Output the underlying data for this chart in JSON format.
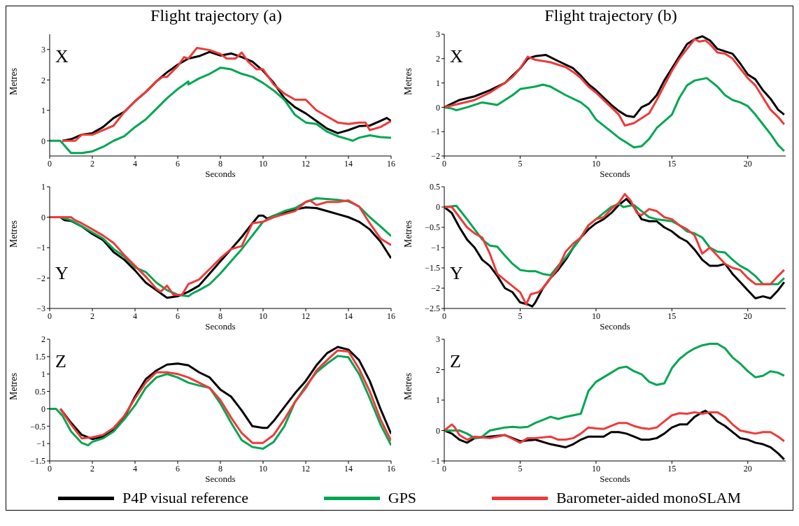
{
  "chart_data": [
    {
      "type": "line",
      "title": "Flight trajectory (a)",
      "xlabel": "Seconds",
      "ylabel": "Metres",
      "annotations": [
        "X"
      ],
      "marker": "none",
      "xlim": [
        0,
        16
      ],
      "xticks": [
        0,
        2,
        4,
        6,
        8,
        10,
        12,
        14,
        16
      ],
      "ylim": [
        -0.5,
        3.5
      ],
      "yticks": [
        0,
        1,
        2,
        3
      ],
      "series": [
        {
          "color": "#000000",
          "x": [
            0.6,
            1,
            1.5,
            2,
            2.5,
            3,
            3.5,
            4,
            4.5,
            5,
            5.5,
            6,
            6.5,
            7,
            7.5,
            8,
            8.5,
            9,
            9.5,
            10,
            10.5,
            11,
            11.5,
            12,
            12.5,
            13,
            13.5,
            14,
            14.5,
            15,
            15.5,
            15.8,
            16
          ],
          "values": [
            0,
            0.05,
            0.2,
            0.25,
            0.45,
            0.75,
            0.95,
            1.3,
            1.6,
            1.95,
            2.25,
            2.5,
            2.7,
            2.78,
            2.92,
            2.8,
            2.87,
            2.75,
            2.6,
            2.3,
            1.9,
            1.4,
            1.1,
            0.9,
            0.65,
            0.4,
            0.25,
            0.35,
            0.48,
            0.5,
            0.65,
            0.75,
            0.65
          ]
        },
        {
          "color": "#00a651",
          "x": [
            0,
            0.5,
            1,
            1.5,
            2,
            2.5,
            3,
            3.5,
            4,
            4.5,
            5,
            5.5,
            6,
            6.5,
            6.5,
            7,
            7.5,
            8,
            8.5,
            9,
            9.5,
            10,
            10.5,
            11,
            11.5,
            12,
            12.5,
            13,
            13.5,
            14,
            14.2,
            14.5,
            15,
            15.5,
            16
          ],
          "values": [
            0,
            0,
            -0.4,
            -0.4,
            -0.35,
            -0.2,
            0,
            0.15,
            0.45,
            0.7,
            1.05,
            1.4,
            1.7,
            1.95,
            1.85,
            2.05,
            2.2,
            2.4,
            2.35,
            2.2,
            2.1,
            1.9,
            1.65,
            1.35,
            0.85,
            0.6,
            0.55,
            0.3,
            0.15,
            0.05,
            0,
            0.1,
            0.18,
            0.12,
            0.1
          ]
        },
        {
          "color": "#ee3a3a",
          "x": [
            0.6,
            1.2,
            1.5,
            2,
            2.5,
            3,
            3.5,
            4,
            4.5,
            5,
            5.3,
            5.5,
            6,
            6.3,
            6.5,
            6.9,
            7.5,
            8,
            8.3,
            8.7,
            9,
            9.3,
            9.7,
            10,
            10.5,
            11,
            11.5,
            12,
            12.5,
            13,
            13.5,
            14,
            14.5,
            14.8,
            15,
            15.5,
            16
          ],
          "values": [
            0,
            0,
            0.2,
            0.2,
            0.35,
            0.5,
            0.95,
            1.3,
            1.6,
            1.95,
            2.1,
            2.1,
            2.45,
            2.75,
            2.7,
            3.05,
            2.98,
            2.85,
            2.7,
            2.7,
            2.9,
            2.6,
            2.35,
            2.35,
            1.85,
            1.55,
            1.35,
            1.35,
            1,
            0.8,
            0.6,
            0.55,
            0.6,
            0.6,
            0.35,
            0.45,
            0.65
          ]
        }
      ]
    },
    {
      "type": "line",
      "title": "Flight trajectory (b)",
      "xlabel": "Seconds",
      "ylabel": "Metres",
      "annotations": [
        "X"
      ],
      "marker": "none",
      "xlim": [
        0,
        22.5
      ],
      "xticks": [
        0,
        5,
        10,
        15,
        20
      ],
      "ylim": [
        -2,
        3
      ],
      "yticks": [
        -2,
        -1,
        0,
        1,
        2,
        3
      ],
      "series": [
        {
          "color": "#000000",
          "x": [
            0,
            1,
            2,
            3,
            4,
            4.5,
            5,
            5.5,
            6,
            6.7,
            7.5,
            8.5,
            9,
            9.5,
            10,
            10.5,
            11,
            11.5,
            12,
            12.5,
            13,
            13.5,
            14,
            14.5,
            15,
            15.5,
            16,
            16.5,
            17,
            17.5,
            18,
            18.5,
            19,
            19.5,
            20,
            20.5,
            21,
            21.5,
            22,
            22.4
          ],
          "values": [
            0,
            0.3,
            0.45,
            0.7,
            1,
            1.3,
            1.6,
            2,
            2.1,
            2.15,
            1.9,
            1.6,
            1.3,
            0.95,
            0.7,
            0.4,
            0.1,
            -0.15,
            -0.35,
            -0.4,
            0,
            0.15,
            0.5,
            1.1,
            1.6,
            2.1,
            2.6,
            2.8,
            2.92,
            2.75,
            2.4,
            2.3,
            2.2,
            1.8,
            1.35,
            1.15,
            0.7,
            0.35,
            -0.1,
            -0.3
          ]
        },
        {
          "color": "#00a651",
          "x": [
            0,
            0.5,
            0.8,
            1.5,
            2.5,
            3,
            3.5,
            4,
            4.5,
            5,
            6,
            6.5,
            7,
            8,
            9,
            9.5,
            10,
            11,
            11.5,
            12,
            12.5,
            13,
            13.5,
            14,
            15,
            15.5,
            16,
            16.5,
            17.3,
            18,
            18.5,
            19,
            19.5,
            20,
            20.5,
            21,
            21.5,
            22,
            22.4
          ],
          "values": [
            0,
            -0.05,
            -0.12,
            0,
            0.2,
            0.15,
            0.1,
            0.3,
            0.5,
            0.75,
            0.85,
            0.93,
            0.85,
            0.5,
            0.2,
            -0.05,
            -0.5,
            -1,
            -1.25,
            -1.45,
            -1.65,
            -1.6,
            -1.3,
            -0.85,
            -0.3,
            0.4,
            0.9,
            1.1,
            1.2,
            0.85,
            0.5,
            0.3,
            0.2,
            0.05,
            -0.3,
            -0.7,
            -1.1,
            -1.55,
            -1.8
          ]
        },
        {
          "color": "#ee3a3a",
          "x": [
            0,
            1,
            2,
            3,
            4,
            4.5,
            5,
            5.5,
            6,
            7,
            8,
            8.5,
            9,
            9.5,
            10,
            10.5,
            11,
            11.5,
            11.9,
            12.5,
            13,
            13.5,
            14,
            14.5,
            15,
            15.5,
            16,
            16.5,
            16.8,
            17.2,
            17.5,
            18,
            18.5,
            19,
            19.5,
            20,
            20.5,
            21,
            21.5,
            22,
            22.4
          ],
          "values": [
            0,
            0.15,
            0.3,
            0.6,
            1,
            1.25,
            1.6,
            2.08,
            1.95,
            1.85,
            1.65,
            1.45,
            1.2,
            0.85,
            0.6,
            0.3,
            0,
            -0.3,
            -0.75,
            -0.65,
            -0.45,
            -0.25,
            0.3,
            0.9,
            1.5,
            2,
            2.4,
            2.8,
            2.7,
            2.75,
            2.6,
            2.25,
            2.2,
            2,
            1.6,
            1.2,
            0.9,
            0.4,
            -0.1,
            -0.4,
            -0.7
          ]
        }
      ]
    },
    {
      "type": "line",
      "xlabel": "Seconds",
      "ylabel": "Metres",
      "annotations": [
        "Y"
      ],
      "marker": "none",
      "xlim": [
        0,
        16
      ],
      "xticks": [
        0,
        2,
        4,
        6,
        8,
        10,
        12,
        14,
        16
      ],
      "ylim": [
        -3,
        1
      ],
      "yticks": [
        -3,
        -2,
        -1,
        0,
        1
      ],
      "series": [
        {
          "color": "#000000",
          "x": [
            0,
            0.5,
            0.7,
            1,
            1.5,
            2,
            2.5,
            3,
            3.5,
            4,
            4.5,
            5,
            5.5,
            6,
            6.5,
            7,
            7.5,
            8,
            8.5,
            9,
            9.5,
            9.8,
            10,
            10.2,
            10.5,
            11,
            11.5,
            12,
            12.5,
            13,
            13.5,
            14,
            14.5,
            15,
            15.5,
            16
          ],
          "values": [
            0,
            0,
            -0.1,
            -0.12,
            -0.3,
            -0.55,
            -0.75,
            -1.15,
            -1.4,
            -1.75,
            -2.15,
            -2.4,
            -2.65,
            -2.6,
            -2.45,
            -2.25,
            -1.85,
            -1.45,
            -1.05,
            -0.65,
            -0.2,
            0.05,
            0.05,
            -0.05,
            0.05,
            0.15,
            0.25,
            0.32,
            0.3,
            0.2,
            0.1,
            0,
            -0.15,
            -0.4,
            -0.8,
            -1.35
          ]
        },
        {
          "color": "#00a651",
          "x": [
            0,
            0.5,
            1,
            1.5,
            2,
            2.5,
            3,
            3.5,
            4,
            4.5,
            5,
            5.5,
            6,
            6.5,
            6.7,
            7,
            7.5,
            8,
            8.5,
            9,
            9.5,
            10,
            10.5,
            11,
            11.5,
            12,
            12.5,
            13,
            13.5,
            14,
            14.5,
            15,
            15.5,
            16
          ],
          "values": [
            0,
            0,
            -0.1,
            -0.3,
            -0.5,
            -0.7,
            -1.05,
            -1.3,
            -1.65,
            -1.8,
            -2.15,
            -2.4,
            -2.55,
            -2.6,
            -2.5,
            -2.4,
            -2.2,
            -1.85,
            -1.45,
            -1.05,
            -0.6,
            -0.15,
            0.05,
            0.2,
            0.3,
            0.5,
            0.62,
            0.6,
            0.57,
            0.52,
            0.35,
            0,
            -0.3,
            -0.62
          ]
        },
        {
          "color": "#ee3a3a",
          "x": [
            0,
            1,
            1.2,
            1.5,
            2,
            2.5,
            3,
            3.5,
            4,
            4.5,
            5,
            5.2,
            5.5,
            5.8,
            6.2,
            6.5,
            7,
            7.5,
            8,
            8.5,
            9,
            9.5,
            10,
            10.5,
            11,
            11.5,
            12,
            12.2,
            12.5,
            13,
            13.5,
            14,
            14.5,
            15,
            15.5,
            16
          ],
          "values": [
            0,
            0,
            -0.1,
            -0.2,
            -0.4,
            -0.6,
            -0.85,
            -1.25,
            -1.6,
            -1.95,
            -2.35,
            -2.45,
            -2.25,
            -2.55,
            -2.55,
            -2.2,
            -2.05,
            -1.7,
            -1.35,
            -1.05,
            -0.95,
            -0.2,
            -0.15,
            0,
            0.1,
            0.2,
            0.5,
            0.55,
            0.4,
            0.5,
            0.5,
            0.55,
            0.35,
            -0.2,
            -0.7,
            -0.92
          ]
        }
      ]
    },
    {
      "type": "line",
      "xlabel": "Seconds",
      "ylabel": "Metres",
      "annotations": [
        "Y"
      ],
      "marker": "none",
      "xlim": [
        0,
        22.5
      ],
      "xticks": [
        0,
        5,
        10,
        15,
        20
      ],
      "ylim": [
        -2.5,
        0.5
      ],
      "yticks": [
        -2.5,
        -2,
        -1.5,
        -1,
        -0.5,
        0,
        0.5
      ],
      "series": [
        {
          "color": "#000000",
          "x": [
            0,
            0.5,
            1,
            1.5,
            2,
            2.5,
            3,
            3.5,
            4,
            4.5,
            5,
            5.5,
            5.8,
            6,
            6.5,
            7,
            7.5,
            8,
            8.5,
            9,
            9.5,
            10,
            10.5,
            11,
            11.5,
            12,
            12.5,
            13,
            13.5,
            14,
            14.5,
            15,
            15.5,
            16,
            16.5,
            17,
            17.5,
            18,
            18.5,
            19,
            19.5,
            20,
            20.5,
            21,
            21.5,
            22,
            22.4
          ],
          "values": [
            0,
            -0.15,
            -0.5,
            -0.8,
            -1,
            -1.3,
            -1.45,
            -1.7,
            -2,
            -2.1,
            -2.35,
            -2.4,
            -2.45,
            -2.35,
            -2,
            -1.75,
            -1.55,
            -1.3,
            -1,
            -0.75,
            -0.55,
            -0.4,
            -0.3,
            -0.15,
            0.05,
            0.2,
            0,
            -0.3,
            -0.35,
            -0.35,
            -0.5,
            -0.6,
            -0.75,
            -0.85,
            -1.05,
            -1.3,
            -1.45,
            -1.45,
            -1.4,
            -1.65,
            -1.85,
            -2.05,
            -2.25,
            -2.2,
            -2.25,
            -2.05,
            -1.85
          ]
        },
        {
          "color": "#00a651",
          "x": [
            0,
            0.8,
            1.5,
            2,
            2.5,
            3,
            3.5,
            4,
            4.5,
            5,
            5.5,
            6,
            6.5,
            7,
            7.5,
            8,
            8.5,
            9,
            9.5,
            10,
            10.5,
            11,
            11.5,
            11.8,
            12.5,
            13,
            13.5,
            14,
            15,
            15.5,
            16,
            16.5,
            17,
            17.5,
            18,
            18.5,
            19,
            19.5,
            20,
            20.5,
            21,
            21.5,
            22,
            22.4
          ],
          "values": [
            0,
            0.03,
            -0.3,
            -0.55,
            -0.8,
            -0.95,
            -0.98,
            -1.2,
            -1.4,
            -1.55,
            -1.58,
            -1.58,
            -1.65,
            -1.68,
            -1.45,
            -1.25,
            -1,
            -0.75,
            -0.45,
            -0.3,
            -0.15,
            0,
            0.08,
            0,
            0.05,
            -0.1,
            -0.25,
            -0.3,
            -0.35,
            -0.45,
            -0.6,
            -0.65,
            -0.75,
            -1,
            -1.1,
            -1.12,
            -1.3,
            -1.45,
            -1.55,
            -1.7,
            -1.9,
            -1.9,
            -1.9,
            -1.75
          ]
        },
        {
          "color": "#ee3a3a",
          "x": [
            0,
            0.5,
            1,
            1.5,
            2,
            2.5,
            3,
            3.5,
            4,
            4.5,
            5,
            5.4,
            5.7,
            6.2,
            6.5,
            7,
            7.5,
            8,
            8.5,
            9,
            9.5,
            10,
            10.5,
            11,
            11.5,
            11.9,
            12.3,
            12.7,
            13,
            13.5,
            14,
            14.5,
            15,
            15.5,
            16,
            16.5,
            17,
            17.5,
            18,
            18.5,
            19,
            19.5,
            20,
            20.5,
            21,
            21.5,
            22,
            22.4
          ],
          "values": [
            0,
            0,
            -0.25,
            -0.5,
            -0.65,
            -0.75,
            -1.15,
            -1.65,
            -1.8,
            -1.95,
            -2.1,
            -2.4,
            -2.15,
            -2.1,
            -2,
            -1.75,
            -1.5,
            -1.1,
            -0.9,
            -0.75,
            -0.45,
            -0.3,
            -0.25,
            -0.05,
            0.1,
            0.32,
            0.15,
            -0.15,
            -0.2,
            -0.05,
            -0.1,
            -0.25,
            -0.3,
            -0.45,
            -0.55,
            -0.7,
            -1.15,
            -1,
            -1.2,
            -1.4,
            -1.5,
            -1.55,
            -1.75,
            -1.9,
            -1.9,
            -1.9,
            -1.7,
            -1.55
          ]
        }
      ]
    },
    {
      "type": "line",
      "xlabel": "Seconds",
      "ylabel": "Metres",
      "annotations": [
        "Z"
      ],
      "marker": "none",
      "xlim": [
        0,
        16
      ],
      "xticks": [
        0,
        2,
        4,
        6,
        8,
        10,
        12,
        14,
        16
      ],
      "ylim": [
        -1.5,
        2
      ],
      "yticks": [
        -1.5,
        -1,
        -0.5,
        0,
        0.5,
        1,
        1.5,
        2
      ],
      "series": [
        {
          "color": "#000000",
          "x": [
            0.5,
            1,
            1.5,
            2,
            2.5,
            3,
            3.5,
            4,
            4.5,
            5,
            5.5,
            6,
            6.5,
            7,
            7.5,
            8,
            8.5,
            9,
            9.5,
            10,
            10.2,
            10.5,
            11,
            11.5,
            12,
            12.5,
            13,
            13.5,
            14,
            14.5,
            15,
            15.5,
            16
          ],
          "values": [
            0,
            -0.4,
            -0.75,
            -0.87,
            -0.8,
            -0.6,
            -0.25,
            0.35,
            0.85,
            1.1,
            1.27,
            1.3,
            1.25,
            1.05,
            0.9,
            0.55,
            0.35,
            -0.05,
            -0.5,
            -0.55,
            -0.55,
            -0.35,
            0.05,
            0.45,
            0.8,
            1.25,
            1.6,
            1.78,
            1.7,
            1.4,
            0.8,
            0,
            -0.72
          ]
        },
        {
          "color": "#00a651",
          "x": [
            0,
            0.3,
            0.6,
            1,
            1.5,
            1.8,
            2,
            2.5,
            3,
            3.5,
            4,
            4.5,
            5,
            5.5,
            6,
            6.5,
            7,
            7.5,
            8,
            8.5,
            9,
            9.5,
            10,
            10.5,
            11,
            11.5,
            12,
            12.5,
            13,
            13.5,
            14,
            14.5,
            15,
            15.5,
            16
          ],
          "values": [
            0,
            0,
            -0.2,
            -0.65,
            -0.98,
            -1.05,
            -0.95,
            -0.85,
            -0.65,
            -0.3,
            0.1,
            0.6,
            0.9,
            1,
            0.9,
            0.75,
            0.67,
            0.6,
            0.15,
            -0.4,
            -0.9,
            -1.1,
            -1.15,
            -0.95,
            -0.5,
            0.2,
            0.65,
            1.05,
            1.3,
            1.52,
            1.48,
            1,
            0.3,
            -0.45,
            -1.05
          ]
        },
        {
          "color": "#ee3a3a",
          "x": [
            0.5,
            1,
            1.5,
            2,
            2.5,
            3,
            3.5,
            4,
            4.5,
            5,
            5.5,
            6,
            6.5,
            7,
            7.5,
            8,
            8.5,
            9,
            9.5,
            10,
            10.5,
            11,
            11.5,
            12,
            12.5,
            13,
            13.5,
            14,
            14.5,
            15,
            15.5,
            16
          ],
          "values": [
            0,
            -0.45,
            -0.85,
            -0.82,
            -0.75,
            -0.55,
            -0.2,
            0.3,
            0.75,
            1.05,
            1.05,
            1,
            0.9,
            0.75,
            0.6,
            0.25,
            -0.25,
            -0.7,
            -0.98,
            -0.98,
            -0.75,
            -0.3,
            0.2,
            0.6,
            1.1,
            1.4,
            1.68,
            1.65,
            1.15,
            0.5,
            -0.3,
            -0.92
          ]
        }
      ]
    },
    {
      "type": "line",
      "xlabel": "Seconds",
      "ylabel": "Metres",
      "annotations": [
        "Z"
      ],
      "marker": "none",
      "legend": "bottom",
      "xlim": [
        0,
        22.5
      ],
      "xticks": [
        0,
        5,
        10,
        15,
        20
      ],
      "ylim": [
        -1,
        3
      ],
      "yticks": [
        -1,
        0,
        1,
        2,
        3
      ],
      "series": [
        {
          "name": "P4P visual reference",
          "color": "#000000",
          "x": [
            0,
            0.5,
            1,
            1.5,
            2,
            3,
            4,
            5,
            6,
            7,
            8,
            8.5,
            9,
            9.5,
            10,
            10.5,
            11,
            11.5,
            12,
            12.5,
            13,
            13.5,
            14,
            14.5,
            15,
            15.5,
            16,
            16.5,
            17,
            17.2,
            17.5,
            18,
            18.5,
            19,
            19.5,
            20,
            20.5,
            21,
            21.5,
            22,
            22.4
          ],
          "values": [
            0,
            -0.1,
            -0.3,
            -0.4,
            -0.25,
            -0.2,
            -0.15,
            -0.35,
            -0.3,
            -0.45,
            -0.55,
            -0.45,
            -0.3,
            -0.2,
            -0.2,
            -0.2,
            -0.05,
            -0.05,
            -0.1,
            -0.2,
            -0.3,
            -0.3,
            -0.25,
            -0.1,
            0.1,
            0.2,
            0.2,
            0.45,
            0.6,
            0.65,
            0.55,
            0.3,
            0.15,
            -0.05,
            -0.25,
            -0.3,
            -0.4,
            -0.45,
            -0.55,
            -0.75,
            -0.95
          ]
        },
        {
          "name": "GPS",
          "color": "#00a651",
          "x": [
            0,
            1,
            1.5,
            2,
            2.5,
            3,
            3.5,
            4,
            4.5,
            5,
            5.5,
            6,
            6.5,
            7,
            7.5,
            8,
            8.5,
            9,
            9.2,
            9.5,
            10,
            10.5,
            11,
            11.5,
            12,
            12.5,
            13,
            13.5,
            14,
            14.5,
            15,
            15.5,
            16,
            16.5,
            17,
            17.5,
            18,
            18.5,
            19,
            19.5,
            20,
            20.5,
            21,
            21.5,
            22,
            22.4
          ],
          "values": [
            0,
            0,
            -0.1,
            -0.25,
            -0.2,
            0,
            0.05,
            0.1,
            0.12,
            0.1,
            0.12,
            0.25,
            0.35,
            0.45,
            0.38,
            0.45,
            0.5,
            0.55,
            0.85,
            1.3,
            1.6,
            1.75,
            1.9,
            2.05,
            2.1,
            1.95,
            1.85,
            1.6,
            1.5,
            1.55,
            2.05,
            2.35,
            2.55,
            2.7,
            2.8,
            2.85,
            2.85,
            2.7,
            2.4,
            2.2,
            1.95,
            1.75,
            1.8,
            1.95,
            1.9,
            1.8
          ]
        },
        {
          "name": "Barometer-aided monoSLAM",
          "color": "#ee3a3a",
          "x": [
            0,
            0.5,
            0.7,
            1,
            1.5,
            2,
            3,
            4,
            5,
            5.5,
            6,
            7,
            7.5,
            8,
            8.5,
            9,
            9.5,
            10,
            10.5,
            11,
            11.5,
            12,
            12.5,
            13,
            13.5,
            14,
            14.5,
            15,
            15.5,
            16,
            16.5,
            17,
            17.5,
            18,
            18.5,
            19,
            19.5,
            20,
            20.5,
            21,
            21.5,
            22,
            22.4
          ],
          "values": [
            0,
            0.2,
            0.1,
            -0.15,
            -0.3,
            -0.2,
            -0.25,
            -0.15,
            -0.4,
            -0.25,
            -0.25,
            -0.2,
            -0.3,
            -0.3,
            -0.25,
            -0.1,
            0.1,
            0.07,
            0.05,
            0.15,
            0.25,
            0.25,
            0.15,
            0.08,
            0.05,
            0.1,
            0.3,
            0.5,
            0.57,
            0.55,
            0.6,
            0.55,
            0.6,
            0.6,
            0.45,
            0.2,
            0,
            -0.05,
            -0.1,
            -0.05,
            -0.05,
            -0.2,
            -0.35
          ]
        }
      ]
    }
  ]
}
